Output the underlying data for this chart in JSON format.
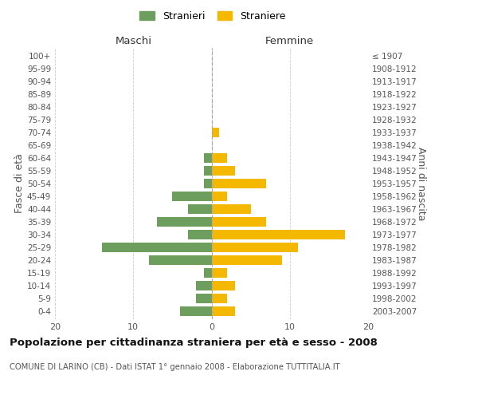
{
  "age_groups": [
    "0-4",
    "5-9",
    "10-14",
    "15-19",
    "20-24",
    "25-29",
    "30-34",
    "35-39",
    "40-44",
    "45-49",
    "50-54",
    "55-59",
    "60-64",
    "65-69",
    "70-74",
    "75-79",
    "80-84",
    "85-89",
    "90-94",
    "95-99",
    "100+"
  ],
  "birth_years": [
    "2003-2007",
    "1998-2002",
    "1993-1997",
    "1988-1992",
    "1983-1987",
    "1978-1982",
    "1973-1977",
    "1968-1972",
    "1963-1967",
    "1958-1962",
    "1953-1957",
    "1948-1952",
    "1943-1947",
    "1938-1942",
    "1933-1937",
    "1928-1932",
    "1923-1927",
    "1918-1922",
    "1913-1917",
    "1908-1912",
    "≤ 1907"
  ],
  "maschi": [
    4,
    2,
    2,
    1,
    8,
    14,
    3,
    7,
    3,
    5,
    1,
    1,
    1,
    0,
    0,
    0,
    0,
    0,
    0,
    0,
    0
  ],
  "femmine": [
    3,
    2,
    3,
    2,
    9,
    11,
    17,
    7,
    5,
    2,
    7,
    3,
    2,
    0,
    1,
    0,
    0,
    0,
    0,
    0,
    0
  ],
  "maschi_color": "#6e9e5e",
  "femmine_color": "#f5b800",
  "title": "Popolazione per cittadinanza straniera per età e sesso - 2008",
  "subtitle": "COMUNE DI LARINO (CB) - Dati ISTAT 1° gennaio 2008 - Elaborazione TUTTITALIA.IT",
  "ylabel_left": "Fasce di età",
  "ylabel_right": "Anni di nascita",
  "xlabel_maschi": "Maschi",
  "xlabel_femmine": "Femmine",
  "legend_maschi": "Stranieri",
  "legend_femmine": "Straniere",
  "xlim": 20,
  "background_color": "#ffffff",
  "grid_color": "#cccccc"
}
